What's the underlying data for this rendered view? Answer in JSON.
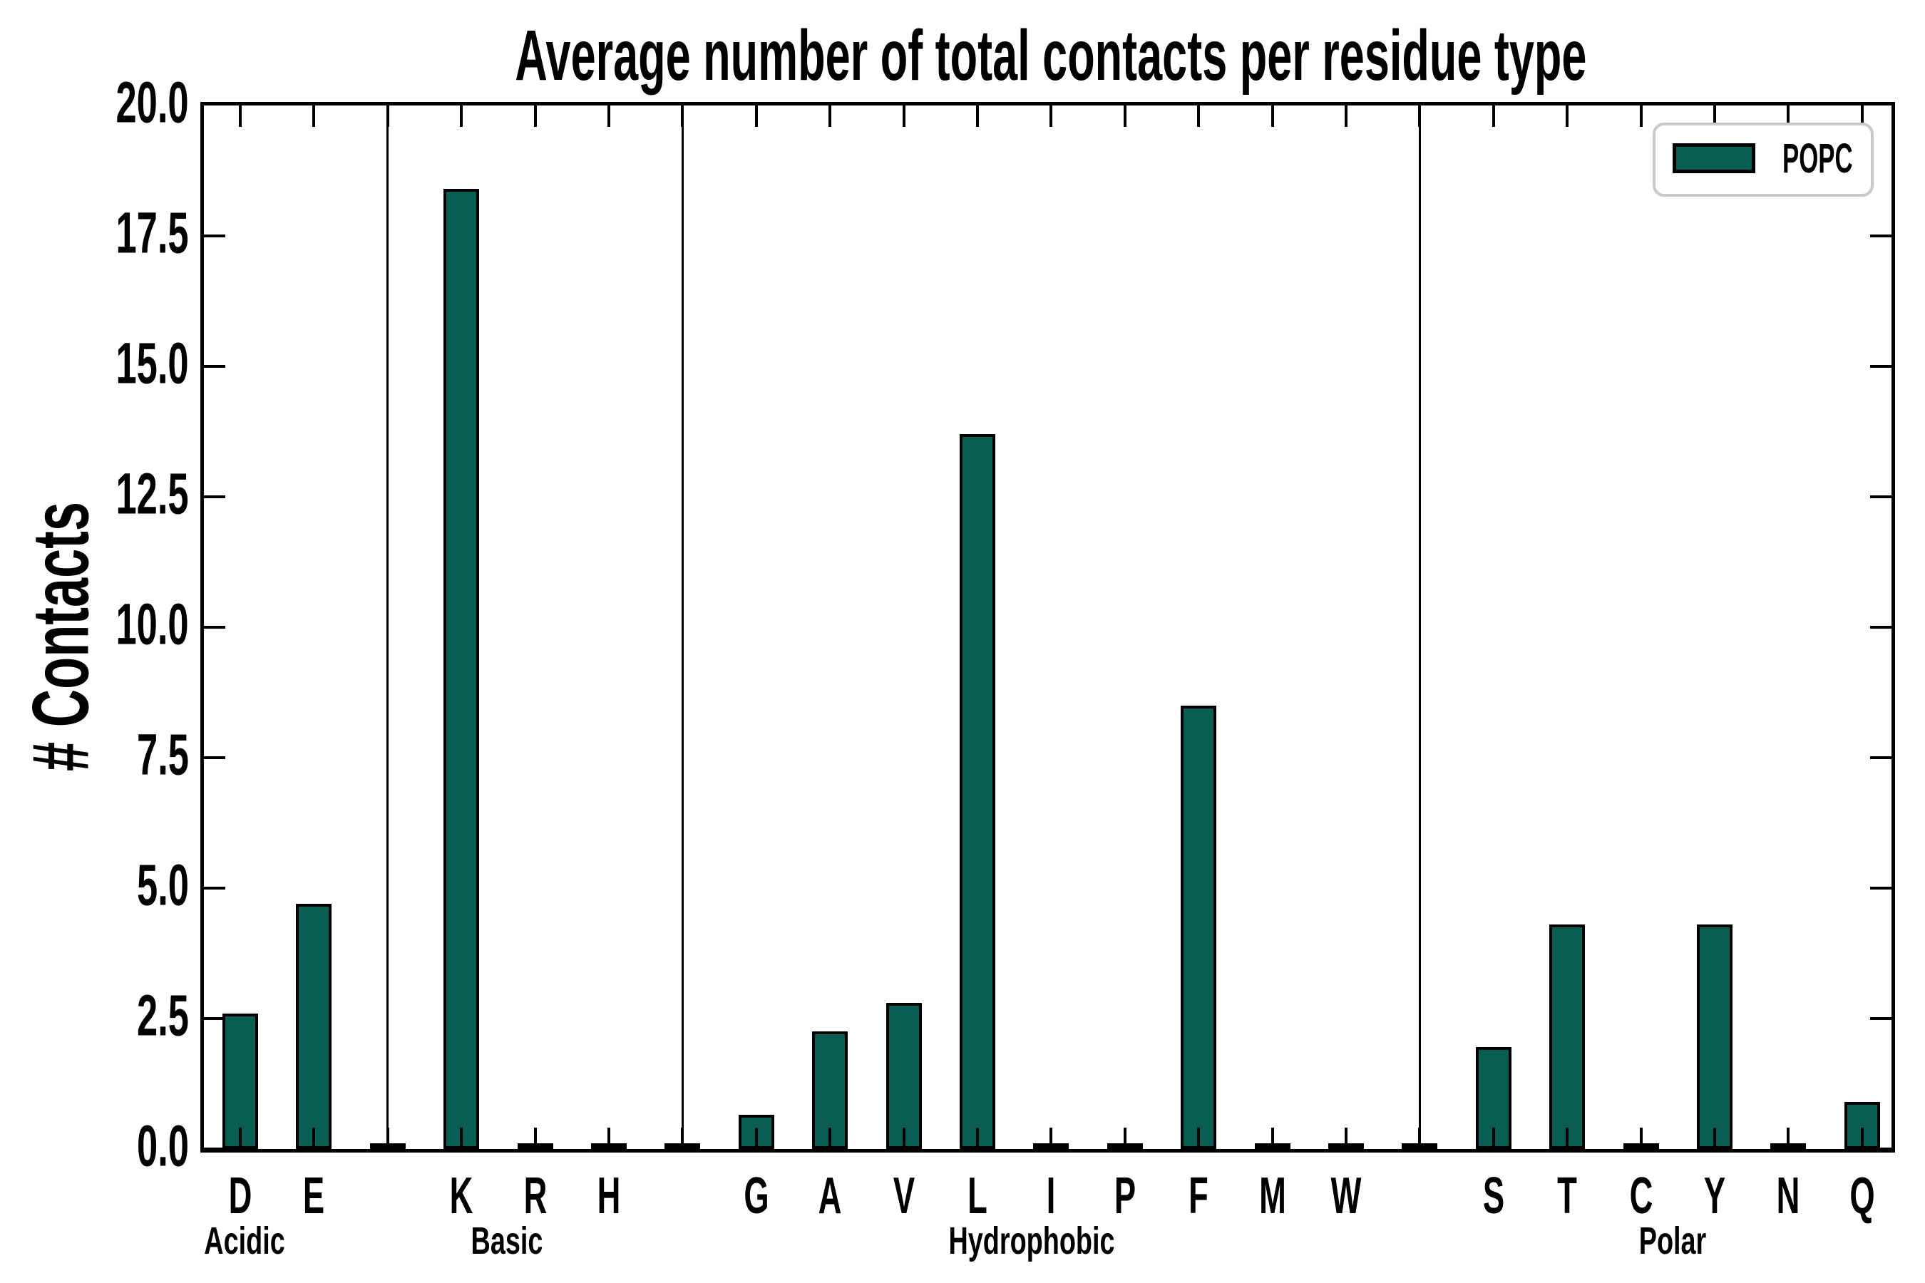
{
  "chart_data": {
    "type": "bar",
    "title": "Average number of total contacts per residue type",
    "ylabel": "# Contacts",
    "ylim": [
      0,
      20
    ],
    "ytick_labels": [
      "20.0",
      "17.5",
      "15.0",
      "12.5",
      "10.0",
      "7.5",
      "5.0",
      "2.5",
      "0.0"
    ],
    "grid": false,
    "legend": {
      "label": "POPC",
      "position": "upper right"
    },
    "bar_color": "#085e52",
    "bar_edge_color": "#000000",
    "groups": [
      {
        "name": "Acidic",
        "categories": [
          "D",
          "E"
        ],
        "values": [
          2.6,
          4.7
        ]
      },
      {
        "name": "Basic",
        "categories": [
          "K",
          "R",
          "H"
        ],
        "values": [
          18.4,
          0.0,
          0.0
        ]
      },
      {
        "name": "Hydrophobic",
        "categories": [
          "G",
          "A",
          "V",
          "L",
          "I",
          "P",
          "F",
          "M",
          "W"
        ],
        "values": [
          0.65,
          2.25,
          2.8,
          13.7,
          0.0,
          0.0,
          8.5,
          0.0,
          0.0
        ]
      },
      {
        "name": "Polar",
        "categories": [
          "S",
          "T",
          "C",
          "Y",
          "N",
          "Q"
        ],
        "values": [
          1.95,
          4.3,
          0.0,
          4.3,
          0.0,
          0.9
        ]
      }
    ]
  }
}
